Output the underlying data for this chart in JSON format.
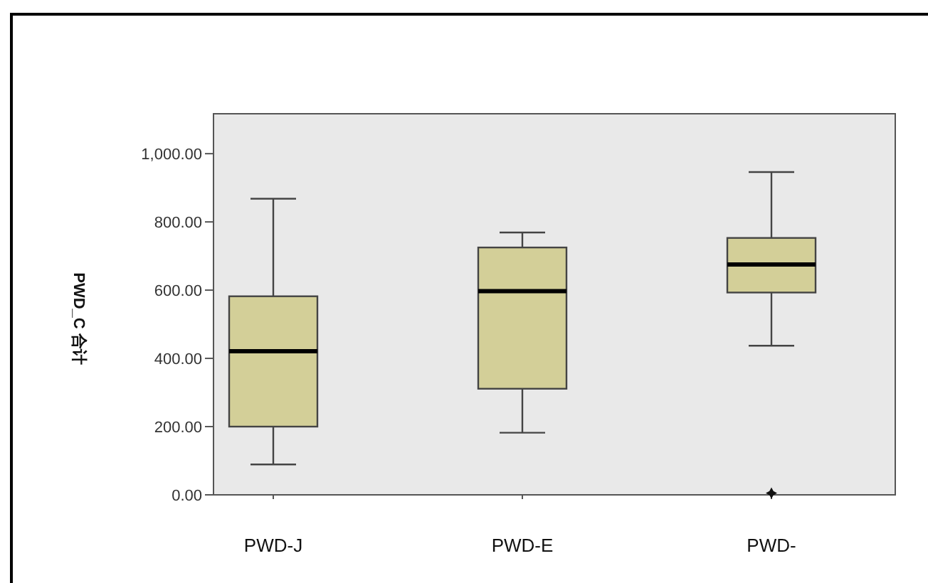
{
  "chart_data": {
    "type": "box",
    "ylabel": "PWD_C 合计",
    "categories": [
      "PWD-J",
      "PWD-E",
      "PWD-"
    ],
    "color": "#d3cf98",
    "ylim": [
      0,
      1117
    ],
    "yticks": [
      {
        "value": 0,
        "label": "0.00"
      },
      {
        "value": 200,
        "label": "200.00"
      },
      {
        "value": 400,
        "label": "400.00"
      },
      {
        "value": 600,
        "label": "600.00"
      },
      {
        "value": 800,
        "label": "800.00"
      },
      {
        "value": 1000,
        "label": "1,000.00"
      }
    ],
    "grid": false,
    "boxes": [
      {
        "low": 89,
        "q1": 200,
        "median": 421,
        "q3": 582,
        "high": 868
      },
      {
        "low": 182,
        "q1": 311,
        "median": 597,
        "q3": 725,
        "high": 769
      },
      {
        "low": 437,
        "q1": 593,
        "median": 675,
        "q3": 753,
        "high": 946,
        "outliers": [
          5
        ]
      }
    ]
  }
}
